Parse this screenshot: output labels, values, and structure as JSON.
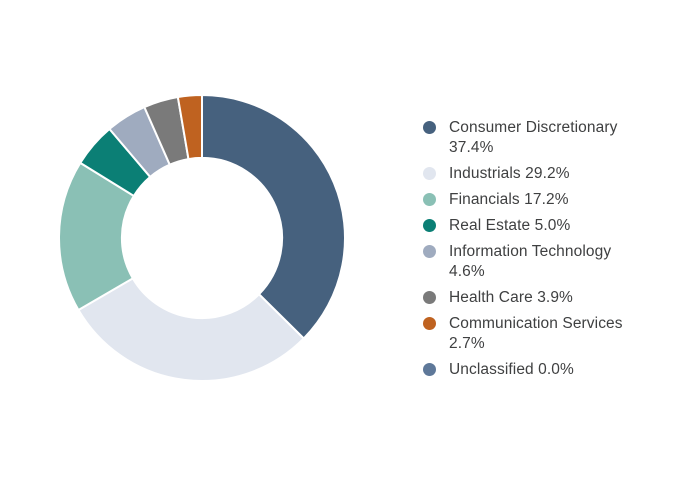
{
  "page": {
    "background": "#FFFFFF"
  },
  "chart_data": {
    "type": "pie",
    "subtype": "donut",
    "title": "",
    "labels": [
      "Consumer Discretionary",
      "Industrials",
      "Financials",
      "Real Estate",
      "Information Technology",
      "Health Care",
      "Communication Services",
      "Unclassified"
    ],
    "values": [
      37.4,
      29.2,
      17.2,
      5.0,
      4.6,
      3.9,
      2.7,
      0.0
    ],
    "percent_labels": [
      "37.4%",
      "29.2%",
      "17.2%",
      "5.0%",
      "4.6%",
      "3.9%",
      "2.7%",
      "0.0%"
    ],
    "colors": [
      "#46617E",
      "#E1E6EF",
      "#8AC0B5",
      "#0B7F75",
      "#9FABBF",
      "#7A7A7A",
      "#BF6220",
      "#5E7899"
    ],
    "start_angle_deg": 0,
    "direction": "clockwise",
    "donut_hole_ratio": 0.56,
    "slice_separator_color": "#FFFFFF",
    "legend_position": "right",
    "legend_text_color": "#3F4041"
  }
}
